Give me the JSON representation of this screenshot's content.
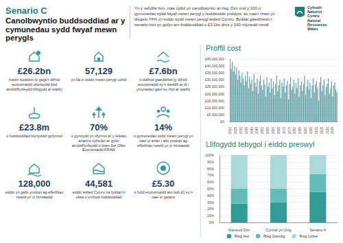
{
  "header": {
    "title": "Senario C",
    "subtitle": "Canolbwyntio buddsoddiad ar y cymunedau sydd fwyaf mewn perygls",
    "text": "Yn y sefyllfa hon, mae cyllid yn canolbwyntio ar risg. Dim ond y 100 o gymunedau sydd fwyaf mewn perygl y buddsoddir ynddynt, ac mae'r rhain yn diogelu 74% o'r eiddo sydd mewn perygl ledled Cymru. Byddai gweithredu'r senario hon yn gofyn am fuddsoddiad o £3.1bn dros y 100 mlynedd nesaf."
  },
  "logo": {
    "lines": [
      "Cyfoeth",
      "Naturiol",
      "Cymru",
      "Natural",
      "Resources",
      "Wales"
    ]
  },
  "stats": [
    {
      "value": "£26.2bn",
      "label": "mewn buddion (o gego'r difrod economaidd oherwydd bod amddiffynfeydd llifogydd ar waith)"
    },
    {
      "value": "57,129",
      "label": "yn llai o eiddo mewn perygl uchel"
    },
    {
      "value": "£7.6bn",
      "label": "o ddifrod gweddilliol (y difrod economaidd sy'n weddill ar ôl i ymyriadau gael eu rhoi ar waith)"
    },
    {
      "value": "£23.8m",
      "label": "o fuddsoddiad blynyddol gofynnol"
    },
    {
      "value": "70%",
      "label": "o gynnydd yn ofynnol ar y lefelau ariannu cyfredol ar gyfer amddiffynfeydd o fewn Set Offer Economaidd FRAW"
    },
    {
      "value": "14%",
      "label": "o gymunedau sydd mewn perygl yn cael yr arian i allu ymdopi ag effeithiau newid yn yr hinsawdd"
    },
    {
      "value": "128,000",
      "label": "eiddo yn gallu ymdopi ag effeithiau newid yn yr hinsawdd"
    },
    {
      "value": "44,581",
      "label": "eiddo ledled Cymru na fyddan'n elwa o unrhyw fuddsoddiad"
    },
    {
      "value": "£5.30",
      "label": "o fudd economaidd am bob £1 sy'n cael ei gwario"
    }
  ],
  "chart_data": [
    {
      "type": "bar",
      "title": "Proffil cost",
      "categories": [
        "2020",
        null,
        null,
        null,
        null,
        "2025",
        null,
        null,
        null,
        null,
        "2030",
        null,
        null,
        null,
        null,
        "2035",
        null,
        null,
        null,
        null,
        "2040",
        null,
        null,
        null,
        null,
        "2045",
        null,
        null,
        null,
        null,
        "2050",
        null,
        null,
        null,
        null,
        "2055",
        null,
        null,
        null,
        null,
        "2060",
        null,
        null,
        null,
        null,
        "2065",
        null,
        null,
        null,
        null,
        "2070",
        null,
        null,
        null,
        null,
        "2075",
        null,
        null,
        null,
        null,
        "2080",
        null,
        null,
        null,
        null,
        "2085",
        null,
        null,
        null,
        null,
        "2090",
        null,
        null,
        null,
        null,
        "2095",
        null,
        null,
        null,
        null,
        "2100",
        null,
        null,
        null,
        null,
        "2105",
        null,
        null,
        null,
        null,
        "2110",
        null,
        null,
        null,
        null,
        "2115",
        null,
        null,
        null,
        null
      ],
      "values": [
        41000000,
        38000000,
        43000000,
        36000000,
        40000000,
        34000000,
        39000000,
        30000000,
        37000000,
        33000000,
        28000000,
        35000000,
        31000000,
        26000000,
        33000000,
        29000000,
        36000000,
        24000000,
        32000000,
        27000000,
        30000000,
        22000000,
        34000000,
        28000000,
        25000000,
        31000000,
        20000000,
        29000000,
        33000000,
        26000000,
        23000000,
        30000000,
        27000000,
        18000000,
        32000000,
        25000000,
        28000000,
        21000000,
        31000000,
        24000000,
        29000000,
        19000000,
        27000000,
        33000000,
        22000000,
        26000000,
        30000000,
        17000000,
        28000000,
        25000000,
        31000000,
        21000000,
        26000000,
        29000000,
        16000000,
        27000000,
        32000000,
        23000000,
        25000000,
        30000000,
        20000000,
        28000000,
        24000000,
        31000000,
        18000000,
        26000000,
        29000000,
        22000000,
        27000000,
        33000000,
        19000000,
        25000000,
        30000000,
        23000000,
        28000000,
        17000000,
        26000000,
        31000000,
        21000000,
        27000000,
        29000000,
        24000000,
        15000000,
        28000000,
        32000000,
        22000000,
        26000000,
        30000000,
        19000000,
        25000000,
        27000000,
        31000000,
        20000000,
        24000000,
        29000000,
        18000000,
        26000000,
        28000000,
        23000000,
        21000000
      ],
      "color": "#5d9ea5",
      "ylim": [
        0,
        45000000
      ],
      "yticks": [
        {
          "value": 0,
          "label": "£0"
        },
        {
          "value": 5000000,
          "label": "£5,000,000"
        },
        {
          "value": 10000000,
          "label": "£10,000,000"
        },
        {
          "value": 15000000,
          "label": "£15,000,000"
        },
        {
          "value": 20000000,
          "label": "£20,000,000"
        },
        {
          "value": 25000000,
          "label": "£25,000,000"
        },
        {
          "value": 30000000,
          "label": "£30,000,000"
        },
        {
          "value": 35000000,
          "label": "£35,000,000"
        },
        {
          "value": 40000000,
          "label": "£40,000,000"
        },
        {
          "value": 45000000,
          "label": "£45,000,000"
        }
      ],
      "grid": true
    },
    {
      "type": "bar",
      "title": "Llifogydd tebygol i eiddo preswyl",
      "categories": [
        "Gwneud Dim",
        "Cynnal yn Unig",
        "Senario A"
      ],
      "series": [
        {
          "name": "Risg Isel",
          "color": "#2f9a96",
          "values": [
            28,
            30,
            45
          ]
        },
        {
          "name": "Risg Ganolig",
          "color": "#62bdb9",
          "values": [
            22,
            20,
            27
          ]
        },
        {
          "name": "Risg Uchel",
          "color": "#a9dad7",
          "values": [
            50,
            50,
            28
          ]
        }
      ],
      "stacked": true,
      "ylim": [
        0,
        100
      ],
      "yticks": [
        {
          "value": 0,
          "label": "0%"
        },
        {
          "value": 10,
          "label": "10%"
        },
        {
          "value": 20,
          "label": "20%"
        },
        {
          "value": 30,
          "label": "30%"
        },
        {
          "value": 40,
          "label": "40%"
        },
        {
          "value": 50,
          "label": "50%"
        },
        {
          "value": 60,
          "label": "60%"
        },
        {
          "value": 70,
          "label": "70%"
        },
        {
          "value": 80,
          "label": "80%"
        },
        {
          "value": 90,
          "label": "90%"
        },
        {
          "value": 100,
          "label": "100%"
        }
      ],
      "grid": true,
      "legend": "bottom"
    }
  ]
}
